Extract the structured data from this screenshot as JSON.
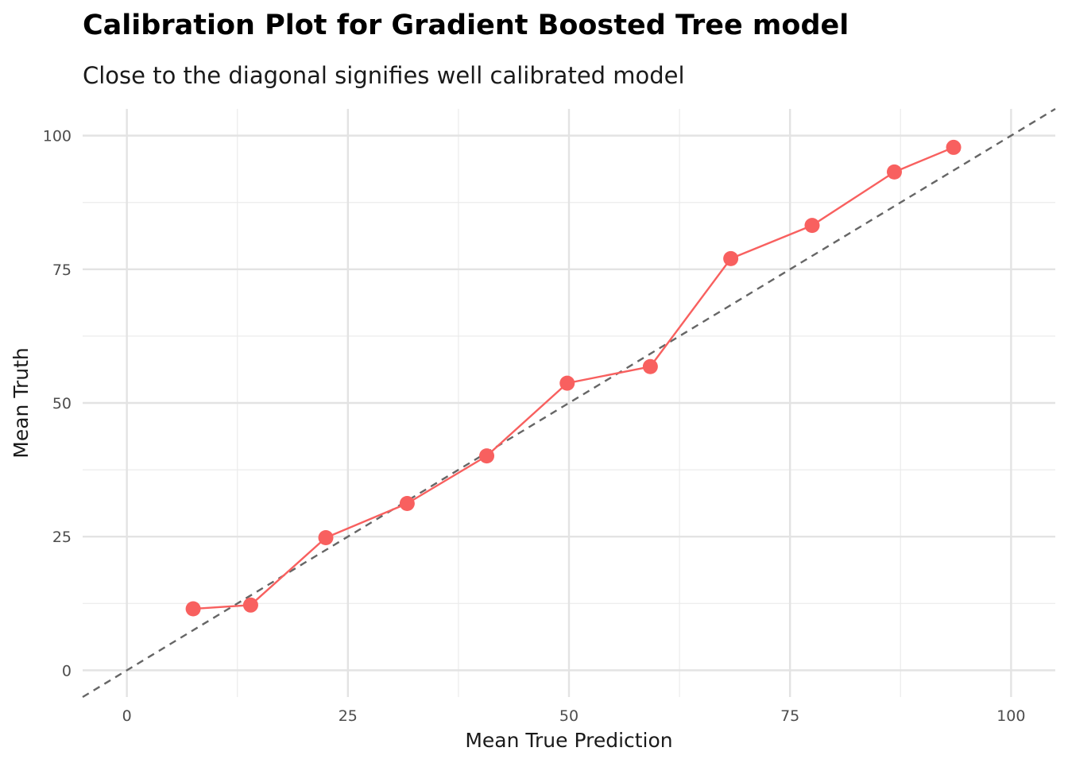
{
  "chart_data": {
    "type": "line",
    "title": "Calibration Plot for Gradient Boosted Tree model",
    "subtitle": "Close to the diagonal signifies well calibrated model",
    "xlabel": "Mean True Prediction",
    "ylabel": "Mean Truth",
    "xlim": [
      -5,
      105
    ],
    "ylim": [
      -5,
      105
    ],
    "xticks": [
      0,
      25,
      50,
      75,
      100
    ],
    "yticks": [
      0,
      25,
      50,
      75,
      100
    ],
    "xtick_labels": [
      "0",
      "25",
      "50",
      "75",
      "100"
    ],
    "ytick_labels": [
      "0",
      "25",
      "50",
      "75",
      "100"
    ],
    "grid": true,
    "series": [
      {
        "x": [
          7.5,
          14,
          22.5,
          31.7,
          40.7,
          49.8,
          59.2,
          68.3,
          77.5,
          86.8,
          93.5
        ],
        "y": [
          11.5,
          12.2,
          24.8,
          31.2,
          40.1,
          53.7,
          56.8,
          77.0,
          83.2,
          93.2,
          97.8
        ],
        "color": "#F8605F"
      }
    ],
    "reference_line": {
      "x": [
        -5,
        105
      ],
      "y": [
        -5,
        105
      ],
      "style": "dashed",
      "color": "#666666"
    }
  }
}
